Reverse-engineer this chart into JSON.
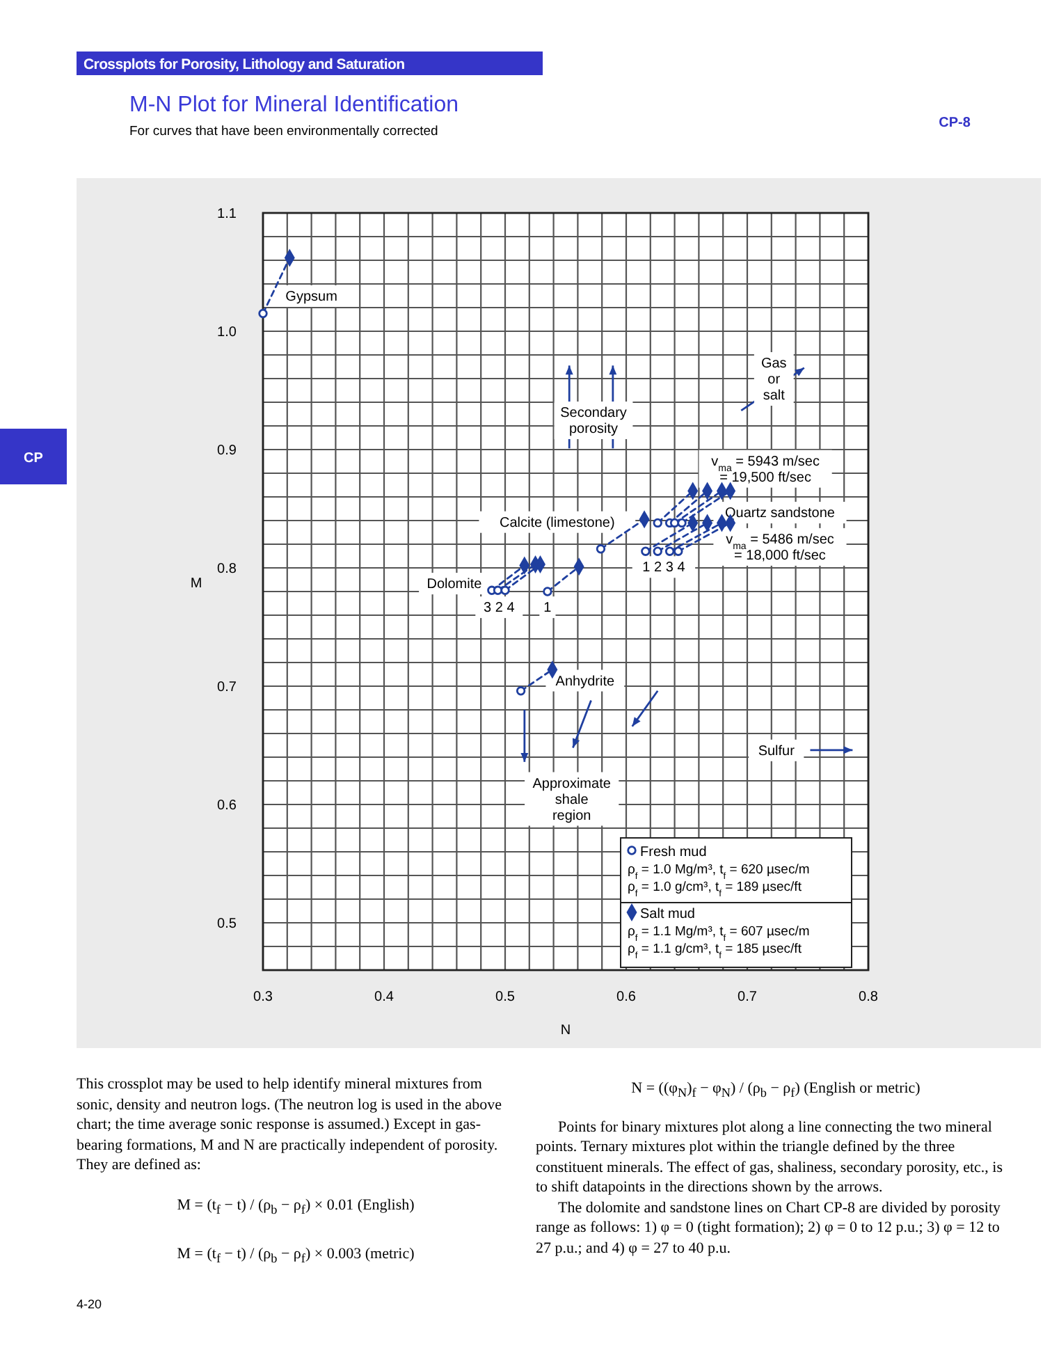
{
  "chart_data": {
    "type": "scatter",
    "title": "M-N Plot for Mineral Identification",
    "subtitle": "For curves that have been environmentally corrected",
    "xlabel": "N",
    "ylabel": "M",
    "xlim": [
      0.3,
      0.8
    ],
    "ylim": [
      0.46,
      1.1
    ],
    "xticks": [
      0.3,
      {
        "value": 0.32,
        "label": null
      },
      {
        "value": 0.34,
        "label": null
      },
      {
        "value": 0.36,
        "label": null
      },
      {
        "value": 0.38,
        "label": null
      },
      0.4,
      {
        "value": 0.42,
        "label": null
      },
      {
        "value": 0.44,
        "label": null
      },
      {
        "value": 0.46,
        "label": null
      },
      {
        "value": 0.48,
        "label": null
      },
      0.5,
      {
        "value": 0.52,
        "label": null
      },
      {
        "value": 0.54,
        "label": null
      },
      {
        "value": 0.56,
        "label": null
      },
      {
        "value": 0.58,
        "label": null
      },
      0.6,
      {
        "value": 0.62,
        "label": null
      },
      {
        "value": 0.64,
        "label": null
      },
      {
        "value": 0.66,
        "label": null
      },
      {
        "value": 0.68,
        "label": null
      },
      0.7,
      {
        "value": 0.72,
        "label": null
      },
      {
        "value": 0.74,
        "label": null
      },
      {
        "value": 0.76,
        "label": null
      },
      {
        "value": 0.78,
        "label": null
      },
      0.8
    ],
    "yticks": [
      {
        "value": 0.48,
        "label": null
      },
      0.5,
      {
        "value": 0.52,
        "label": null
      },
      {
        "value": 0.54,
        "label": null
      },
      {
        "value": 0.56,
        "label": null
      },
      {
        "value": 0.58,
        "label": null
      },
      0.6,
      {
        "value": 0.62,
        "label": null
      },
      {
        "value": 0.64,
        "label": null
      },
      {
        "value": 0.66,
        "label": null
      },
      {
        "value": 0.68,
        "label": null
      },
      0.7,
      {
        "value": 0.72,
        "label": null
      },
      {
        "value": 0.74,
        "label": null
      },
      {
        "value": 0.76,
        "label": null
      },
      {
        "value": 0.78,
        "label": null
      },
      0.8,
      {
        "value": 0.82,
        "label": null
      },
      {
        "value": 0.84,
        "label": null
      },
      {
        "value": 0.86,
        "label": null
      },
      {
        "value": 0.88,
        "label": null
      },
      0.9,
      {
        "value": 0.92,
        "label": null
      },
      {
        "value": 0.94,
        "label": null
      },
      {
        "value": 0.96,
        "label": null
      },
      {
        "value": 0.98,
        "label": null
      },
      {
        "value": 1.0,
        "label": "1.0"
      },
      {
        "value": 1.02,
        "label": null
      },
      {
        "value": 1.04,
        "label": null
      },
      {
        "value": 1.06,
        "label": null
      },
      {
        "value": 1.08,
        "label": null
      },
      1.1
    ],
    "grid": true,
    "legend": "bottom right",
    "line_style": "dashed",
    "series": [
      {
        "name": "Fresh mud",
        "marker": "circle",
        "color": "#1f3f9f",
        "x": [
          0.3,
          0.513,
          0.535,
          0.489,
          0.494,
          0.5,
          0.579,
          0.616,
          0.626,
          0.636,
          0.643,
          0.626,
          0.636,
          0.64,
          0.646
        ],
        "values": [
          1.015,
          0.696,
          0.78,
          0.781,
          0.781,
          0.781,
          0.816,
          0.814,
          0.814,
          0.814,
          0.814,
          0.838,
          0.838,
          0.838,
          0.838
        ]
      },
      {
        "name": "Salt mud",
        "marker": "diamond",
        "color": "#1f3f9f",
        "x": [
          0.322,
          0.539,
          0.561,
          0.516,
          0.525,
          0.529,
          0.615,
          0.655,
          0.667,
          0.679,
          0.686,
          0.655,
          0.667,
          0.679,
          0.686
        ],
        "values": [
          1.062,
          0.714,
          0.801,
          0.802,
          0.803,
          0.803,
          0.841,
          0.838,
          0.838,
          0.838,
          0.838,
          0.865,
          0.865,
          0.865,
          0.865
        ]
      },
      {
        "type": "line",
        "color": "#1f3f9f",
        "x": [
          0.3,
          0.322
        ],
        "values": [
          1.015,
          1.062
        ]
      },
      {
        "type": "line",
        "color": "#1f3f9f",
        "x": [
          0.513,
          0.539
        ],
        "values": [
          0.696,
          0.714
        ]
      },
      {
        "type": "line",
        "color": "#1f3f9f",
        "x": [
          0.535,
          0.561
        ],
        "values": [
          0.78,
          0.801
        ]
      },
      {
        "type": "line",
        "color": "#1f3f9f",
        "x": [
          0.489,
          0.516
        ],
        "values": [
          0.781,
          0.802
        ]
      },
      {
        "type": "line",
        "color": "#1f3f9f",
        "x": [
          0.494,
          0.525
        ],
        "values": [
          0.781,
          0.803
        ]
      },
      {
        "type": "line",
        "color": "#1f3f9f",
        "x": [
          0.5,
          0.529
        ],
        "values": [
          0.781,
          0.803
        ]
      },
      {
        "type": "line",
        "color": "#1f3f9f",
        "x": [
          0.579,
          0.615
        ],
        "values": [
          0.816,
          0.841
        ]
      },
      {
        "type": "line",
        "color": "#1f3f9f",
        "x": [
          0.616,
          0.655
        ],
        "values": [
          0.814,
          0.838
        ]
      },
      {
        "type": "line",
        "color": "#1f3f9f",
        "x": [
          0.626,
          0.667
        ],
        "values": [
          0.814,
          0.838
        ]
      },
      {
        "type": "line",
        "color": "#1f3f9f",
        "x": [
          0.636,
          0.679
        ],
        "values": [
          0.814,
          0.838
        ]
      },
      {
        "type": "line",
        "color": "#1f3f9f",
        "x": [
          0.643,
          0.686
        ],
        "values": [
          0.814,
          0.838
        ]
      },
      {
        "type": "line",
        "color": "#1f3f9f",
        "x": [
          0.626,
          0.655
        ],
        "values": [
          0.838,
          0.865
        ]
      },
      {
        "type": "line",
        "color": "#1f3f9f",
        "x": [
          0.636,
          0.667
        ],
        "values": [
          0.838,
          0.865
        ]
      },
      {
        "type": "line",
        "color": "#1f3f9f",
        "x": [
          0.64,
          0.679
        ],
        "values": [
          0.838,
          0.865
        ]
      },
      {
        "type": "line",
        "color": "#1f3f9f",
        "x": [
          0.646,
          0.686
        ],
        "values": [
          0.838,
          0.865
        ]
      }
    ],
    "annotations": [
      "Crossplots for Porosity, Lithology and Saturation",
      "CP-8",
      "CP",
      "4-20",
      "ρ$_{f}$ = 1.0 Mg/m³, t$_{f}$ = 620 µsec/m",
      "ρ$_{f}$ = 1.0 g/cm³, t$_{f}$ = 189 µsec/ft",
      "ρ$_{f}$ = 1.1 Mg/m³, t$_{f}$ = 607 µsec/m",
      "ρ$_{f}$ = 1.1 g/cm³, t$_{f}$ = 185 µsec/ft",
      "This crossplot may be used to help identify mineral mixtures from sonic, density and neutron logs. (The neutron log is used in the above chart; the time average sonic response is assumed.) Except in gas-bearing formations, M and N are practically independent of porosity. They are defined as:",
      "M = (t$_{f}$ − t) / (ρ$_{b}$ − ρ$_{f}$) × 0.01 (English)",
      "M = (t$_{f}$ − t) / (ρ$_{b}$ − ρ$_{f}$) × 0.003 (metric)",
      "N = ((φ$_{N}$)$_{f}$ − φ$_{N}$) / (ρ$_{b}$ − ρ$_{f}$) (English or metric)",
      "Points for binary mixtures plot along a line connecting the two mineral points. Ternary mixtures plot within the triangle defined by the three constituent minerals. The effect of gas, shaliness, secondary porosity, etc., is to shift datapoints in the directions shown by the arrows.",
      "The dolomite and sandstone lines on Chart CP-8 are divided by porosity range as follows: 1) φ = 0 (tight formation); 2) φ = 0 to 12 p.u.; 3) φ = 12 to 27 p.u.; and 4) φ = 27 to 40 p.u.",
      "Gypsum",
      "Secondary\nporosity",
      "Gas\nor\nsalt",
      "Calcite (limestone)",
      "Dolomite",
      "Quartz sandstone",
      "v$_{ma}$ = 5943 m/sec\n= 19,500 ft/sec",
      "v$_{ma}$ = 5486 m/sec\n= 18,000 ft/sec",
      "1 2 3 4",
      "3 2 4",
      "1",
      "Anhydrite",
      "Sulfur",
      "Approximate\nshale\nregion"
    ]
  }
}
